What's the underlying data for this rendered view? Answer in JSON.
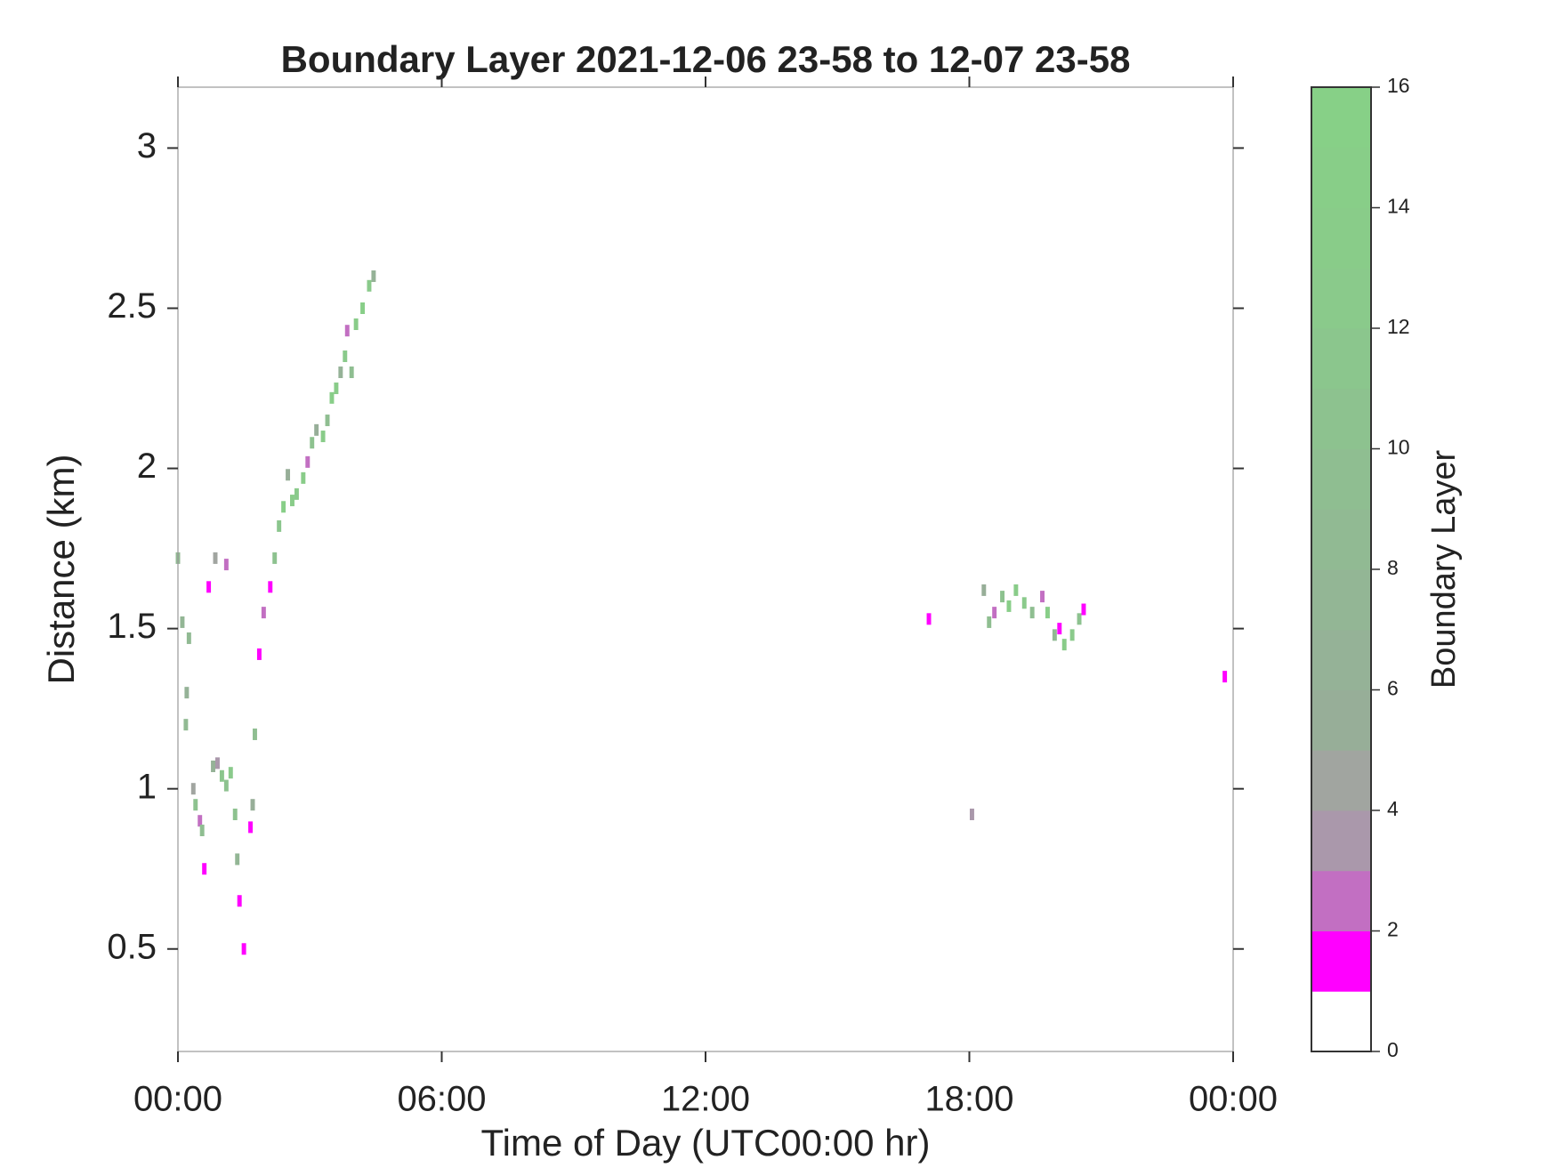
{
  "chart_data": {
    "type": "heatmap",
    "title": "Boundary Layer 2021-12-06 23-58 to 12-07 23-58",
    "x_label": "Time of Day (UTC00:00 hr)",
    "y_label": "Distance (km)",
    "xlim": [
      0,
      24
    ],
    "xticks": [
      {
        "value": 0,
        "label": "00:00"
      },
      {
        "value": 6,
        "label": "06:00"
      },
      {
        "value": 12,
        "label": "12:00"
      },
      {
        "value": 18,
        "label": "18:00"
      },
      {
        "value": 24,
        "label": "00:00"
      }
    ],
    "ylim": [
      0.18,
      3.19
    ],
    "yticks": [
      0.5,
      1,
      1.5,
      2,
      2.5,
      3
    ],
    "x": [
      0.0,
      0.1,
      0.25,
      0.2,
      0.18,
      0.35,
      0.4,
      0.5,
      0.55,
      0.6,
      0.7,
      0.85,
      0.8,
      0.9,
      1.0,
      1.1,
      1.1,
      1.2,
      1.3,
      1.35,
      1.4,
      1.5,
      1.65,
      1.7,
      1.75,
      1.85,
      1.95,
      2.1,
      2.2,
      2.3,
      2.4,
      2.5,
      2.6,
      2.7,
      2.85,
      2.95,
      3.05,
      3.15,
      3.3,
      3.4,
      3.5,
      3.6,
      3.7,
      3.8,
      3.85,
      3.95,
      4.05,
      4.2,
      4.35,
      4.45,
      17.08,
      18.06,
      18.33,
      18.45,
      18.57,
      18.75,
      18.9,
      19.06,
      19.25,
      19.43,
      19.66,
      19.78,
      19.94,
      20.05,
      20.16,
      20.34,
      20.5,
      20.6,
      23.81
    ],
    "y": [
      1.72,
      1.52,
      1.47,
      1.3,
      1.2,
      1.0,
      0.95,
      0.9,
      0.87,
      0.75,
      1.63,
      1.72,
      1.07,
      1.08,
      1.04,
      1.01,
      1.7,
      1.05,
      0.92,
      0.78,
      0.65,
      0.5,
      0.88,
      0.95,
      1.17,
      1.42,
      1.55,
      1.63,
      1.72,
      1.82,
      1.88,
      1.98,
      1.9,
      1.92,
      1.97,
      2.02,
      2.08,
      2.12,
      2.1,
      2.15,
      2.22,
      2.25,
      2.3,
      2.35,
      2.43,
      2.3,
      2.45,
      2.5,
      2.57,
      2.6,
      1.53,
      0.92,
      1.62,
      1.52,
      1.55,
      1.6,
      1.57,
      1.62,
      1.58,
      1.55,
      1.6,
      1.55,
      1.48,
      1.5,
      1.45,
      1.48,
      1.53,
      1.56,
      1.35
    ],
    "values": [
      8,
      7,
      8,
      6,
      8,
      4,
      10,
      2,
      9,
      1,
      1,
      4,
      6,
      3,
      11,
      10,
      2,
      12,
      10,
      7,
      1,
      1,
      1,
      5,
      9,
      1,
      2,
      1,
      10,
      11,
      14,
      5,
      13,
      12,
      13,
      2,
      10,
      5,
      13,
      9,
      14,
      13,
      6,
      12,
      2,
      9,
      13,
      14,
      12,
      6,
      1,
      3,
      5,
      9,
      2,
      10,
      14,
      13,
      12,
      9,
      2,
      14,
      8,
      1,
      13,
      12,
      10,
      1,
      1
    ],
    "colorbar_label": "Boundary Layer",
    "clim": [
      0,
      16
    ],
    "cticks": [
      0,
      2,
      4,
      6,
      8,
      10,
      12,
      14,
      16
    ],
    "colormap": [
      "#ffffff",
      "#ff00ff",
      "#c26fc2",
      "#aa98ab",
      "#a1a5a0",
      "#97ae98",
      "#95b297",
      "#93b695",
      "#91ba93",
      "#8fbe91",
      "#8dc28f",
      "#8bc68d",
      "#8aca8b",
      "#89cc89",
      "#88ce88",
      "#87d087"
    ]
  }
}
